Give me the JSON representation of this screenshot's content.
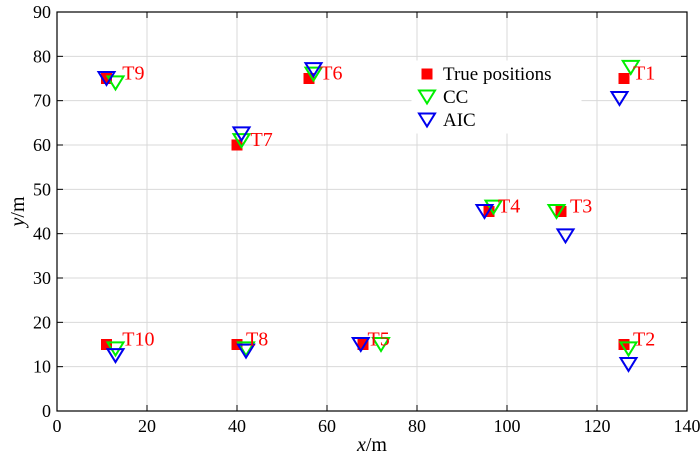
{
  "chart_data": {
    "type": "scatter",
    "xlabel": {
      "var": "x",
      "unit": "/m"
    },
    "ylabel": {
      "var": "y",
      "unit": "/m"
    },
    "xlim": [
      0,
      140
    ],
    "ylim": [
      0,
      90
    ],
    "xticks": [
      0,
      20,
      40,
      60,
      80,
      100,
      120,
      140
    ],
    "yticks": [
      0,
      10,
      20,
      30,
      40,
      50,
      60,
      70,
      80,
      90
    ],
    "grid": true,
    "legend_position": "top-right",
    "series": [
      {
        "name": "True positions",
        "marker": "square",
        "color": "#ff0000",
        "points": [
          {
            "x": 126,
            "y": 75
          },
          {
            "x": 126,
            "y": 15
          },
          {
            "x": 112,
            "y": 45
          },
          {
            "x": 96,
            "y": 45
          },
          {
            "x": 68,
            "y": 15
          },
          {
            "x": 56,
            "y": 75
          },
          {
            "x": 40,
            "y": 60
          },
          {
            "x": 40,
            "y": 15
          },
          {
            "x": 11,
            "y": 75
          },
          {
            "x": 11,
            "y": 15
          }
        ]
      },
      {
        "name": "CC",
        "marker": "triangle-down",
        "color": "#00ee00",
        "points": [
          {
            "x": 127.5,
            "y": 77.5
          },
          {
            "x": 127,
            "y": 14
          },
          {
            "x": 111,
            "y": 45
          },
          {
            "x": 97,
            "y": 46
          },
          {
            "x": 72,
            "y": 15
          },
          {
            "x": 57,
            "y": 76
          },
          {
            "x": 41,
            "y": 61
          },
          {
            "x": 42,
            "y": 14
          },
          {
            "x": 13,
            "y": 74
          },
          {
            "x": 13,
            "y": 14
          }
        ]
      },
      {
        "name": "AIC",
        "marker": "triangle-down",
        "color": "#0000ee",
        "points": [
          {
            "x": 125,
            "y": 70.5
          },
          {
            "x": 127,
            "y": 10.5
          },
          {
            "x": 113,
            "y": 39.5
          },
          {
            "x": 95,
            "y": 45
          },
          {
            "x": 67.5,
            "y": 15
          },
          {
            "x": 57,
            "y": 77
          },
          {
            "x": 41,
            "y": 62.5
          },
          {
            "x": 42,
            "y": 13.5
          },
          {
            "x": 11,
            "y": 75
          },
          {
            "x": 13,
            "y": 12.5
          }
        ]
      }
    ],
    "annotations": [
      {
        "text": "T1",
        "x": 128,
        "y": 75,
        "color": "#ff0000"
      },
      {
        "text": "T2",
        "x": 128,
        "y": 15,
        "color": "#ff0000"
      },
      {
        "text": "T3",
        "x": 114,
        "y": 45,
        "color": "#ff0000"
      },
      {
        "text": "T4",
        "x": 98,
        "y": 45,
        "color": "#ff0000"
      },
      {
        "text": "T5",
        "x": 69,
        "y": 15,
        "color": "#ff0000"
      },
      {
        "text": "T6",
        "x": 58.5,
        "y": 75,
        "color": "#ff0000"
      },
      {
        "text": "T7",
        "x": 43,
        "y": 60,
        "color": "#ff0000"
      },
      {
        "text": "T8",
        "x": 42,
        "y": 15,
        "color": "#ff0000"
      },
      {
        "text": "T9",
        "x": 14.5,
        "y": 75,
        "color": "#ff0000"
      },
      {
        "text": "T10",
        "x": 14.5,
        "y": 15,
        "color": "#ff0000"
      }
    ]
  }
}
